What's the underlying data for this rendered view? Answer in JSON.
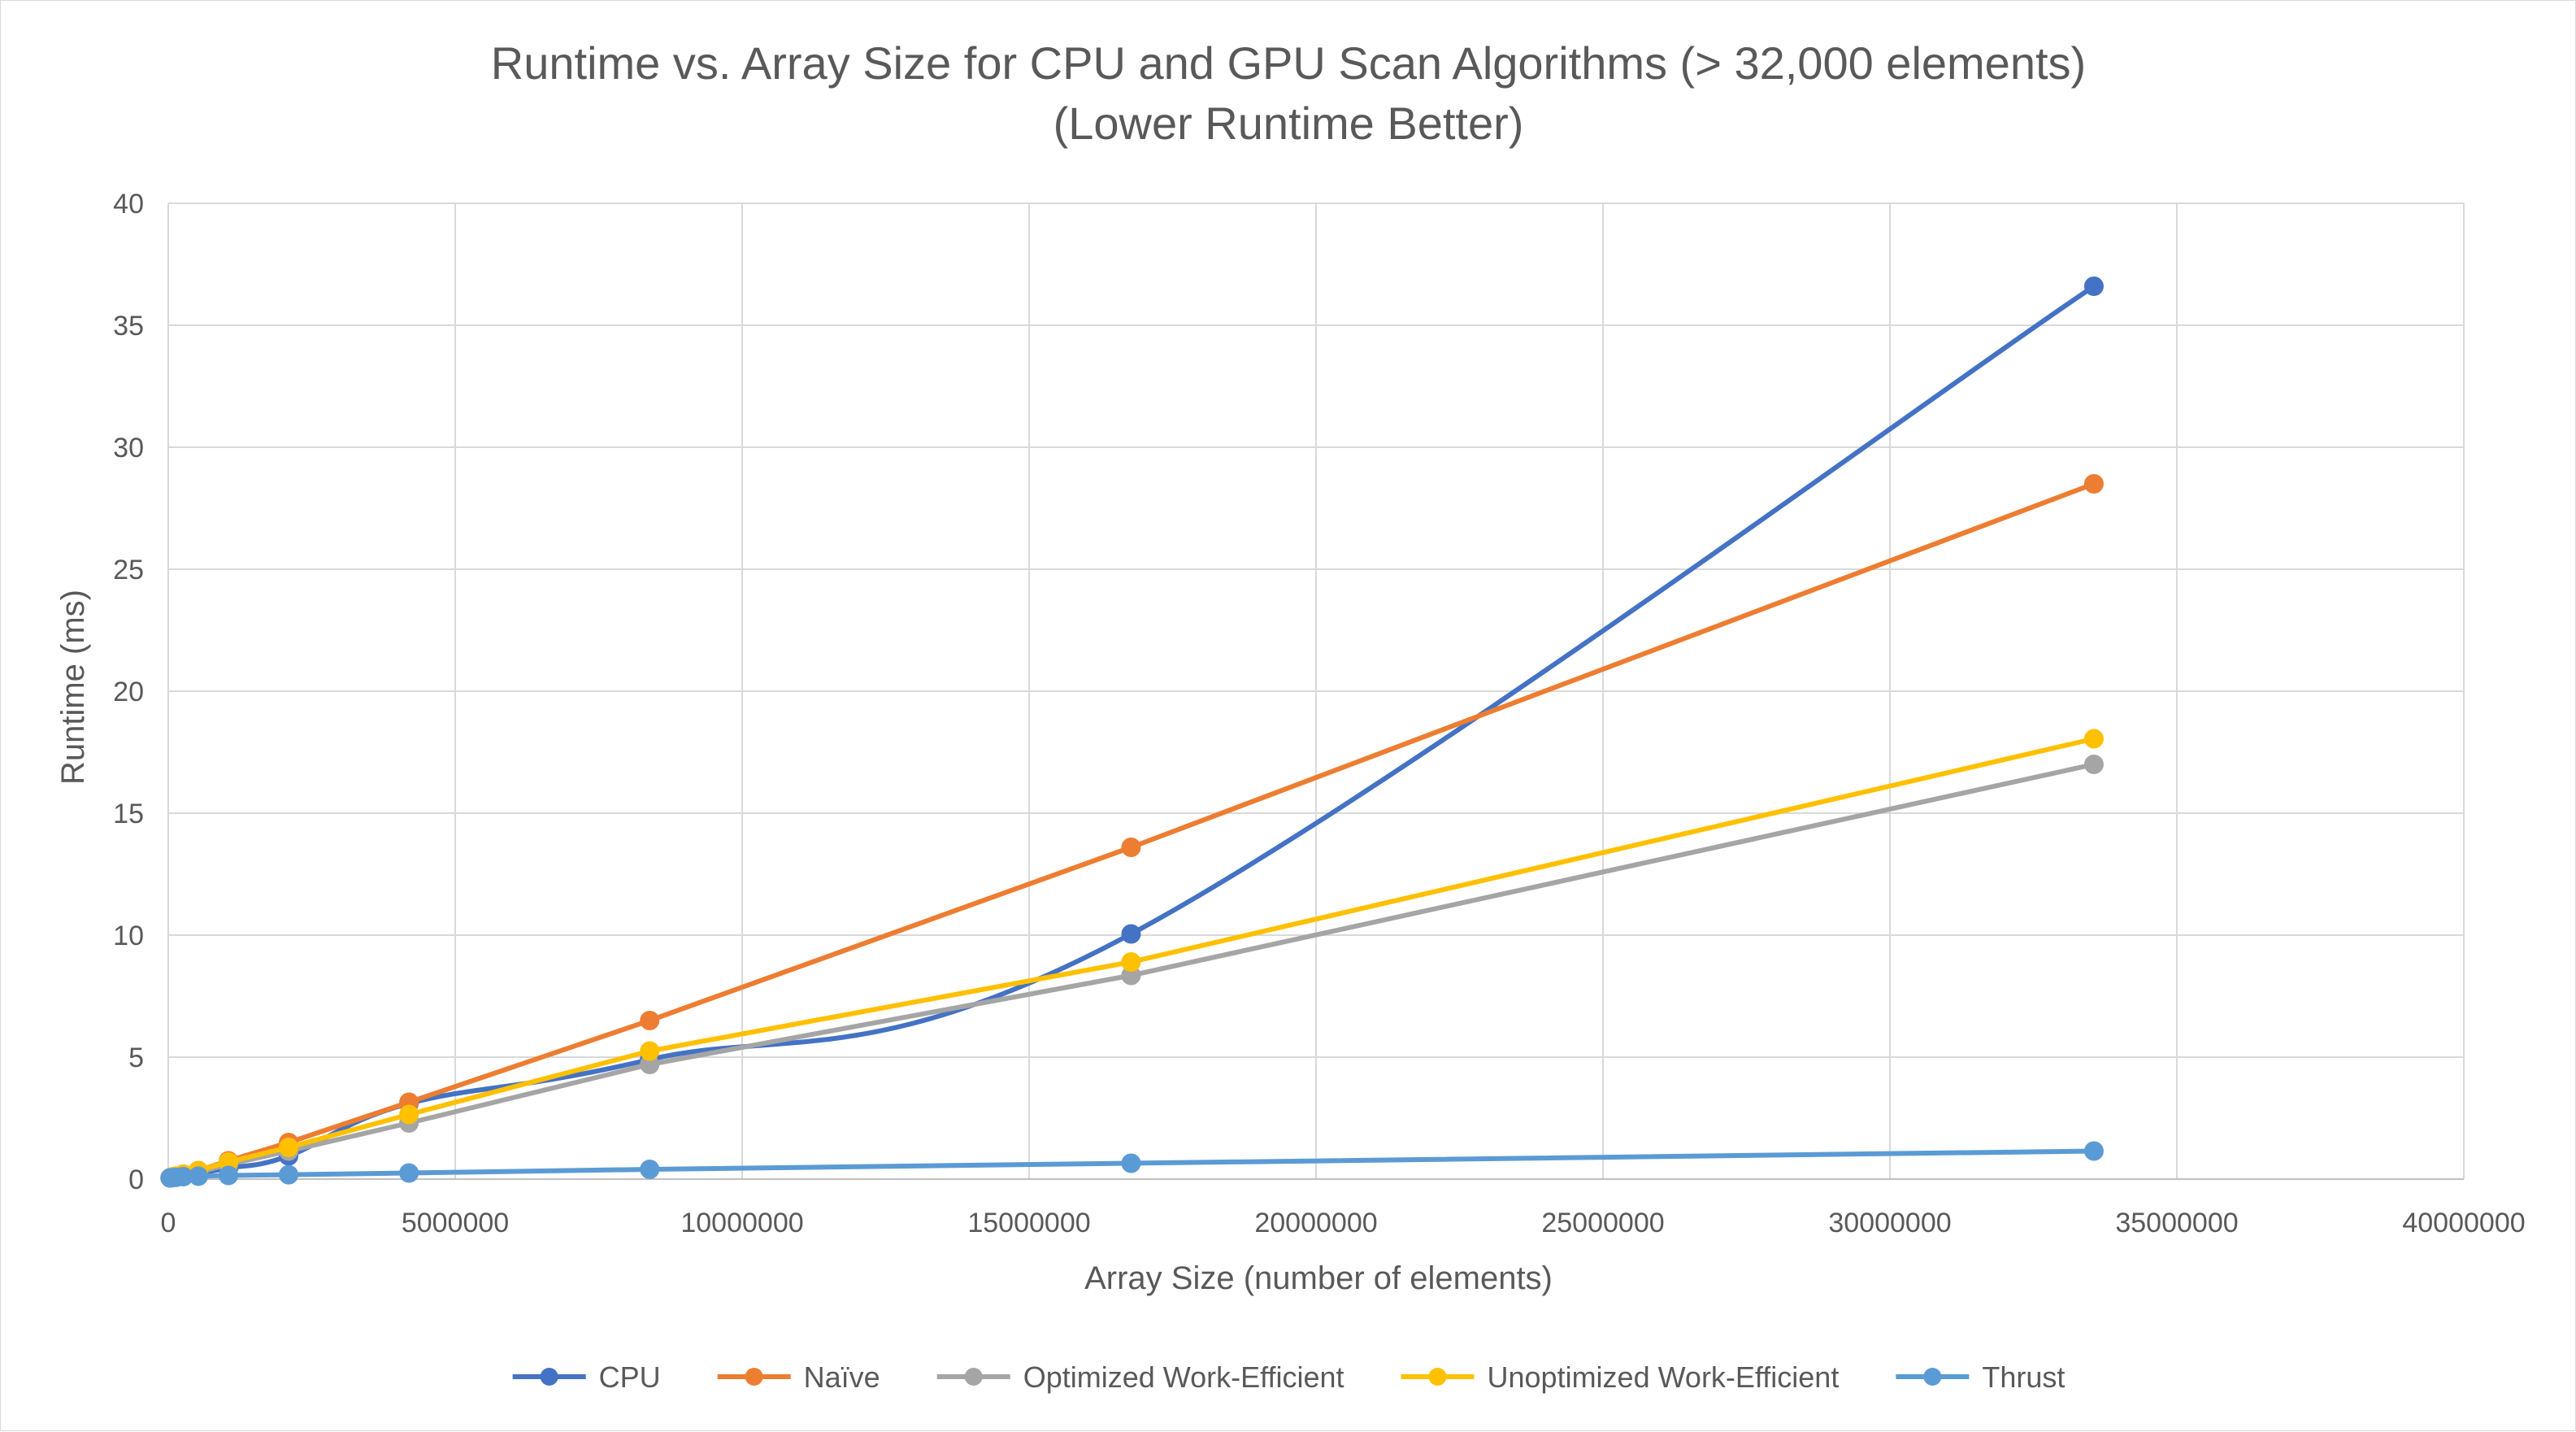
{
  "chart_data": {
    "type": "line",
    "title": "Runtime vs. Array Size for CPU and GPU Scan Algorithms (> 32,000 elements)",
    "subtitle": "(Lower Runtime Better)",
    "xlabel": "Array Size (number of elements)",
    "ylabel": "Runtime (ms)",
    "xlim": [
      0,
      40000000
    ],
    "ylim": [
      0,
      40
    ],
    "x_ticks": [
      "0",
      "5000000",
      "10000000",
      "15000000",
      "20000000",
      "25000000",
      "30000000",
      "35000000",
      "40000000"
    ],
    "y_ticks": [
      "0",
      "5",
      "10",
      "15",
      "20",
      "25",
      "30",
      "35",
      "40"
    ],
    "grid": true,
    "legend_position": "bottom",
    "x": [
      32768,
      65536,
      131072,
      262144,
      524288,
      1048576,
      2097152,
      4194304,
      8388608,
      16777216,
      33554432
    ],
    "series": [
      {
        "name": "CPU",
        "color": "#4472c4",
        "smooth": true,
        "values": [
          0.05,
          0.08,
          0.1,
          0.15,
          0.25,
          0.45,
          0.95,
          3.1,
          4.9,
          10.05,
          36.6
        ]
      },
      {
        "name": "Naïve",
        "color": "#ed7d31",
        "smooth": false,
        "values": [
          0.05,
          0.08,
          0.12,
          0.2,
          0.35,
          0.75,
          1.5,
          3.15,
          6.5,
          13.6,
          28.5
        ]
      },
      {
        "name": "Optimized Work-Efficient",
        "color": "#a5a5a5",
        "smooth": false,
        "values": [
          0.05,
          0.07,
          0.1,
          0.15,
          0.28,
          0.6,
          1.15,
          2.3,
          4.7,
          8.35,
          17.0
        ]
      },
      {
        "name": "Unoptimized Work-Efficient",
        "color": "#ffc000",
        "smooth": false,
        "values": [
          0.06,
          0.09,
          0.12,
          0.2,
          0.35,
          0.7,
          1.3,
          2.65,
          5.25,
          8.9,
          18.05
        ]
      },
      {
        "name": "Thrust",
        "color": "#5b9bd5",
        "smooth": false,
        "values": [
          0.05,
          0.06,
          0.07,
          0.1,
          0.12,
          0.15,
          0.18,
          0.25,
          0.4,
          0.65,
          1.15
        ]
      }
    ]
  }
}
